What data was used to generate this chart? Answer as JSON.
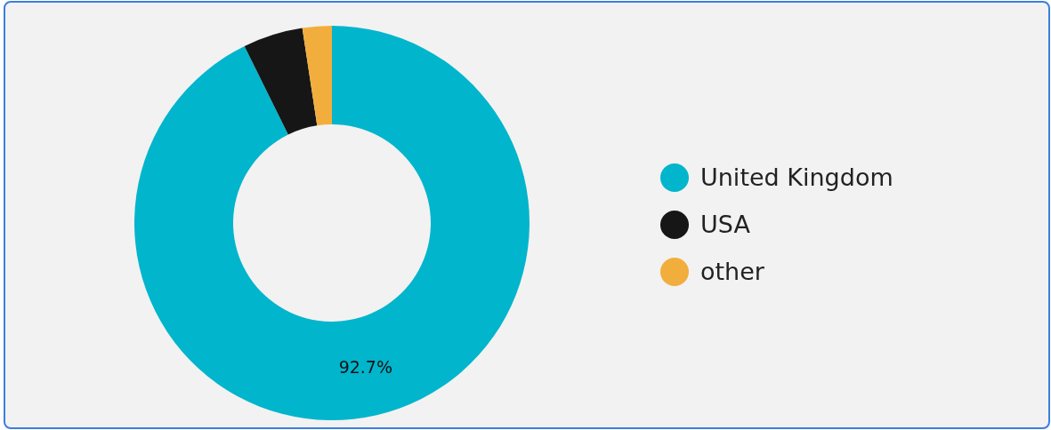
{
  "chart_data": {
    "type": "donut",
    "categories": [
      "United Kingdom",
      "USA",
      "other"
    ],
    "values": [
      92.7,
      4.9,
      2.4
    ],
    "colors": [
      "#00b5cc",
      "#161616",
      "#f2ae3d"
    ],
    "value_labels": [
      "92.7%",
      null,
      null
    ],
    "legend": "right"
  }
}
